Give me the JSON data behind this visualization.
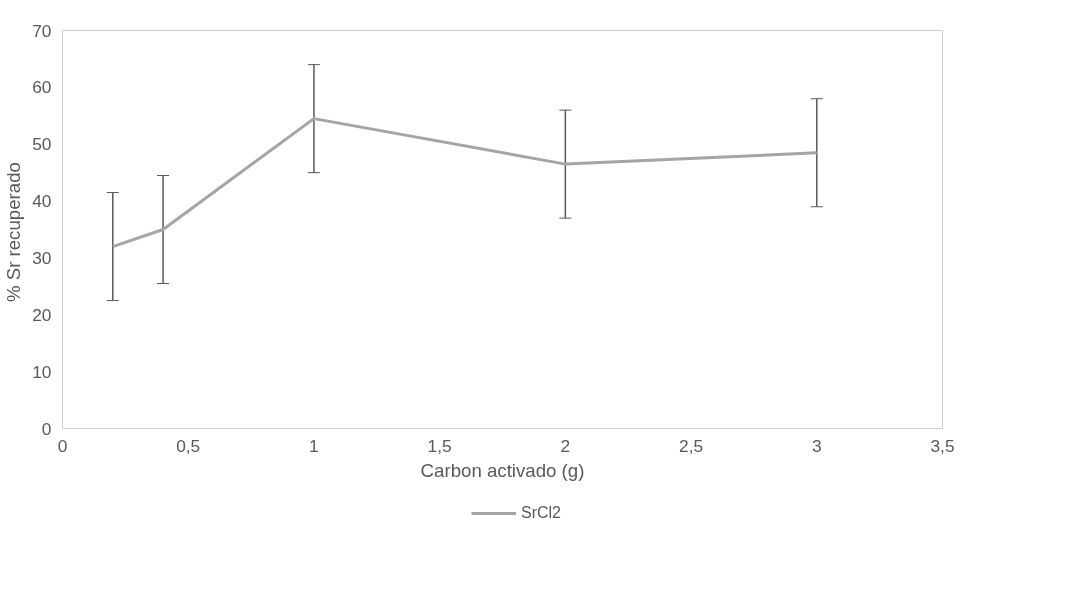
{
  "chart_data": {
    "type": "line",
    "xlabel": "Carbon activado (g)",
    "ylabel": "%  Sr recuperado",
    "x": [
      0.2,
      0.4,
      1,
      2,
      3
    ],
    "series": [
      {
        "name": "SrCl2",
        "color": "#a5a5a5",
        "values": [
          32,
          35,
          54.5,
          46.5,
          48.5
        ],
        "errors": [
          9.5,
          9.5,
          9.5,
          9.5,
          9.5
        ]
      }
    ],
    "xlim": [
      0,
      3.5
    ],
    "ylim": [
      0,
      70
    ],
    "xticks": [
      0,
      {
        "value": 0.5,
        "label": "0,5"
      },
      1,
      {
        "value": 1.5,
        "label": "1,5"
      },
      2,
      {
        "value": 2.5,
        "label": "2,5"
      },
      3,
      {
        "value": 3.5,
        "label": "3,5"
      }
    ],
    "yticks": [
      0,
      10,
      20,
      30,
      40,
      50,
      60,
      70
    ],
    "grid": false,
    "legend": "bottom",
    "marker": "none",
    "line_style": "solid"
  }
}
